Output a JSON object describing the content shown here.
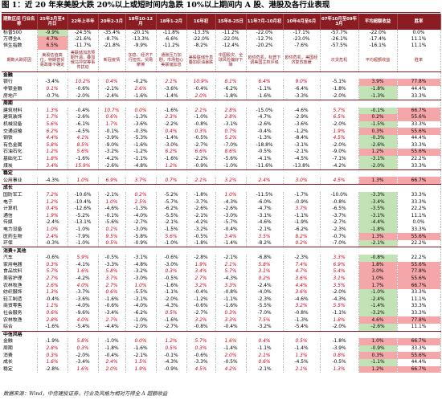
{
  "title": "图 1：近 20 年来美股大跌 20%以上或短时间内急跌 10%以上期间内 A 股、港股及各行业表现",
  "source": "数据来源：Wind，中信建投证券，行业及风格为相对万得全 A 超额收益",
  "header": [
    "期数区间 行业名称",
    "25年3月至4月日",
    "22年上半年",
    "20年2-3月",
    "18年10-12月",
    "18年1-2月",
    "16年初",
    "15年8-25日",
    "11年7月-10月初",
    "10年4月至6月",
    "07年10月至09年3月",
    "平均超额收益",
    "胜率"
  ],
  "index_rows": [
    {
      "name": "标普500",
      "vals": [
        "-9.9%",
        "-24.5%",
        "-35.4%",
        "-20.1%",
        "-11.8%",
        "-13.3%",
        "-11.2%",
        "-22.0%",
        "-17.1%",
        "-57.7%",
        "-22.0%",
        "0.0%"
      ]
    },
    {
      "name": "万得全A",
      "vals": [
        "4.7%",
        "-21.6%",
        "-8.7%",
        "-13.3%",
        "-6.6%",
        "-22.0%",
        "-22.0%",
        "-12.7%",
        "-23.0%",
        "-26.1%",
        "-17.4%",
        "11.1%"
      ]
    },
    {
      "name": "恒生指数",
      "vals": [
        "6.5%",
        "-11.7%",
        "-21.8%",
        "-9.9%",
        "-11.2%",
        "-8.2%",
        "-12.4%",
        "-20.2%",
        "-7.6%",
        "-57.5%",
        "-16.1%",
        "11.1%"
      ]
    }
  ],
  "desc_row": [
    "期数大跌原因",
    "美股估值高位，特朗普贸易政策不确定",
    "美联储加息预期升温，叠加俄乌冲突等事件扰动",
    "新冠疫情",
    "加息、经济下行担忧，贸易摩擦",
    "通胀压力加剧，市场担心美联储加息",
    "美股联储升息叠加原油暴跌",
    "中国股灾、全球风险偏好下降",
    "欧债危机，标普下调美国主权评级",
    "欧债危机，美国经济复苏放缓",
    "次贷危机",
    "平均超额收益",
    "胜率"
  ],
  "sections": [
    {
      "name": "金融",
      "rows": [
        {
          "name": "银行",
          "vals": [
            "-3.4%",
            "10.2%",
            "0.4%",
            "-0.2%",
            "2.1%",
            "10.9%",
            "8.1%",
            "6.4%",
            "9.0%",
            "-5.1%",
            "3.9%",
            "77.8%"
          ]
        },
        {
          "name": "非银金融",
          "vals": [
            "0.1%",
            "-0.6%",
            "-2.1%",
            "2.6%",
            "-3.6%",
            "-0.4%",
            "-6.2%",
            "-1.1%",
            "-6.4%",
            "-1.8%",
            "-1.8%",
            "44.4%"
          ]
        },
        {
          "name": "房地产",
          "vals": [
            "-0.7%",
            "-2.0%",
            "-2.4%",
            "-1.6%",
            "-1.4%",
            "2.0%",
            "-1.8%",
            "-1.6%",
            "-3.3%",
            "-2.0%",
            "-1.3%",
            "33.3%"
          ]
        }
      ]
    },
    {
      "name": "周期",
      "rows": [
        {
          "name": "建筑材料",
          "vals": [
            "1.3%",
            "-0.4%",
            "10.7%",
            "0.0%",
            "-1.6%",
            "2.1%",
            "2.8%",
            "-15.0%",
            "-4.6%",
            "5.7%",
            "-0.1%",
            "66.7%"
          ]
        },
        {
          "name": "建筑装饰",
          "vals": [
            "1.7%",
            "-2.6%",
            "0.6%",
            "-1.3%",
            "2.3%",
            "-1.0%",
            "2.8%",
            "-4.7%",
            "-2.9%",
            "6.5%",
            "0.2%",
            "55.6%"
          ]
        },
        {
          "name": "机械设备",
          "vals": [
            "5.6%",
            "-6.1%",
            "1.7%",
            "-3.6%",
            "-2.2%",
            "-0.8%",
            "-3.1%",
            "-2.6%",
            "-3.6%",
            "-2.0%",
            "-1.5%",
            "33.3%"
          ]
        },
        {
          "name": "交通运输",
          "vals": [
            "6.2%",
            "-4.5%",
            "-0.1%",
            "-0.3%",
            "0.4%",
            "0.3%",
            "0.7%",
            "-0.4%",
            "-1.2%",
            "1.9%",
            "0.3%",
            "55.6%"
          ]
        },
        {
          "name": "钢铁",
          "vals": [
            "4.4%",
            "4.1%",
            "-3.9%",
            "-5.3%",
            "-1.4%",
            "-0.5%",
            "5.2%",
            "-1.3%",
            "-8.4%",
            "4.5%",
            "-0.3%",
            "44.4%"
          ]
        },
        {
          "name": "有色金属",
          "vals": [
            "5.8%",
            "8.5%",
            "-9.0%",
            "-1.6%",
            "-3.0%",
            "-2.7%",
            "-7.0%",
            "-18.8%",
            "-3.1%",
            "-2.0%",
            "-2.6%",
            "33.3%"
          ]
        },
        {
          "name": "石油石化",
          "vals": [
            "1.2%",
            "5.6%",
            "-3.2%",
            "-1.2%",
            "6.2%",
            "6.6%",
            "8.6%",
            "-0.5%",
            "-2.1%",
            "-9.0%",
            "1.2%",
            "55.6%"
          ]
        },
        {
          "name": "基础化工",
          "vals": [
            "1.8%",
            "-1.6%",
            "-4.2%",
            "-1.1%",
            "-1.6%",
            "-2.2%",
            "-5.6%",
            "-4.1%",
            "-4.5%",
            "-7.1%",
            "-3.1%",
            "22.2%"
          ]
        },
        {
          "name": "煤炭",
          "vals": [
            "3.4%",
            "15.9%",
            "-2.6%",
            "-4.8%",
            "1.2%",
            "-0.9%",
            "-1.0%",
            "-11.6%",
            "-13.8%",
            "-4.2%",
            "-2.0%",
            "33.3%"
          ]
        }
      ]
    },
    {
      "name": "稳定",
      "rows": [
        {
          "name": "公用事业",
          "vals": [
            "-4.3%",
            "1.0%",
            "6.9%",
            "3.7%",
            "0.7%",
            "2.1%",
            "3.2%",
            "2.4%",
            "3.0%",
            "4.5%",
            "1.3%",
            "66.7%"
          ]
        }
      ]
    },
    {
      "name": "成长",
      "rows": [
        {
          "name": "国防军工",
          "vals": [
            "7.2%",
            "-10.6%",
            "-2.1%",
            "0.2%",
            "-5.2%",
            "-1.8%",
            "1.0%",
            "-11.5%",
            "-1.7%",
            "-10.0%",
            "-3.3%",
            "33.3%"
          ]
        },
        {
          "name": "电子",
          "vals": [
            "1.2%",
            "-10.4%",
            "1.0%",
            "2.5%",
            "-5.7%",
            "-3.7%",
            "-4.3%",
            "-6.0%",
            "-0.9%",
            "-0.8%",
            "-3.4%",
            "33.3%"
          ]
        },
        {
          "name": "计算机",
          "vals": [
            "0.4%",
            "-12.6%",
            "-4.6%",
            "-1.3%",
            "-6.2%",
            "-2.6%",
            "-2.6%",
            "-4.7%",
            "3.7%",
            "-6.5%",
            "-3.5%",
            "22.2%"
          ]
        },
        {
          "name": "通信",
          "vals": [
            "1.9%",
            "-5.2%",
            "-0.1%",
            "-4.0%",
            "-5.5%",
            "-2.1%",
            "-3.0%",
            "-3.1%",
            "-1.1%",
            "-3.7%",
            "-3.1%",
            "11.1%"
          ]
        },
        {
          "name": "传媒",
          "vals": [
            "-2.4%",
            "-13.1%",
            "-5.6%",
            "-2.7%",
            "-2.1%",
            "-4.2%",
            "-5.7%",
            "-4.6%",
            "-1.9%",
            "-2.7%",
            "-4.4%",
            "0.0%"
          ]
        },
        {
          "name": "电力设备",
          "vals": [
            "1.0%",
            "-1.0%",
            "0.1%",
            "-3.0%",
            "-1.5%",
            "-3.2%",
            "-0.4%",
            "-2.1%",
            "-6.2%",
            "-2.3%",
            "-1.8%",
            "33.3%"
          ]
        },
        {
          "name": "医药生物",
          "vals": [
            "2.4%",
            "-7.9%",
            "9.5%",
            "-5.8%",
            "5.6%",
            "-0.5%",
            "3.4%",
            "3.5%",
            "8.2%",
            "-0.7%",
            "1.3%",
            "55.6%"
          ]
        },
        {
          "name": "环保",
          "vals": [
            "-0.3%",
            "-1.0%",
            "0.5%",
            "-0.9%",
            "-1.0%",
            "-1.8%",
            "-1.4%",
            "-8.2%",
            "0.2%",
            "-7.0%",
            "-2.1%",
            "22.2%"
          ]
        }
      ]
    },
    {
      "name": "消费+其他",
      "rows": [
        {
          "name": "汽车",
          "vals": [
            "-0.6%",
            "5.9%",
            "-0.5%",
            "-3.1%",
            "-0.6%",
            "-2.8%",
            "-2.1%",
            "-6.8%",
            "-2.3%",
            "3.3%",
            "-0.8%",
            "22.2%"
          ]
        },
        {
          "name": "家用电器",
          "vals": [
            "0.3%",
            "-4.1%",
            "-3.3%",
            "-4.8%",
            "-3.0%",
            "1.9%",
            "2.1%",
            "5.8%",
            "7.4%",
            "6.9%",
            "1.8%",
            "55.6%"
          ]
        },
        {
          "name": "食品饮料",
          "vals": [
            "5.7%",
            "1.6%",
            "5.8%",
            "-3.2%",
            "0.3%",
            "3.4%",
            "5.7%",
            "3.1%",
            "4.7%",
            "5.4%",
            "3.0%",
            "77.8%"
          ]
        },
        {
          "name": "美容护理",
          "vals": [
            "2.7%",
            "-4.2%",
            "3.7%",
            "-3.0%",
            "-0.5%",
            "2.7%",
            "-4.3%",
            "0.2%",
            "3.6%",
            "3.1%",
            "1.0%",
            "55.6%"
          ]
        },
        {
          "name": "农林牧渔",
          "vals": [
            "2.6%",
            "4.0%",
            "2.7%",
            "1.0%",
            "-1.6%",
            "3.2%",
            "3.3%",
            "-2.4%",
            "4.4%",
            "3.5%",
            "1.7%",
            "66.7%"
          ]
        },
        {
          "name": "纺织服饰",
          "vals": [
            "1.3%",
            "-3.7%",
            "0.6%",
            "-5.5%",
            "-1.1%",
            "-0.4%",
            "-0.8%",
            "-4.0%",
            "3.6%",
            "-2.0%",
            "-1.0%",
            "33.3%"
          ]
        },
        {
          "name": "轻工制造",
          "vals": [
            "-0.4%",
            "-3.6%",
            "-1.6%",
            "-3.1%",
            "-2.0%",
            "-1.2%",
            "-1.1%",
            "-2.3%",
            "-4.6%",
            "-4.3%",
            "-2.4%",
            "11.1%"
          ]
        },
        {
          "name": "商贸零售",
          "vals": [
            "1.1%",
            "-4.0%",
            "-0.6%",
            "-4.0%",
            "-4.3%",
            "-0.6%",
            "-1.6%",
            "-5.5%",
            "3.2%",
            "5.5%",
            "-1.4%",
            "33.3%"
          ]
        },
        {
          "name": "社会服务",
          "vals": [
            "0.6%",
            "-9.6%",
            "-3.4%",
            "-6.2%",
            "0.5%",
            "-2.7%",
            "0.3%",
            "-7.0%",
            "-0.8%",
            "-1.1%",
            "-3.2%",
            "33.3%"
          ]
        },
        {
          "name": "农林牧渔",
          "vals": [
            "2.8%",
            "4.0%",
            "2.7%",
            "-1.0%",
            "-1.6%",
            "3.2%",
            "3.3%",
            "7.5%",
            "-1.3%",
            "1.8%",
            "4.6%",
            "77.8%"
          ]
        },
        {
          "name": "综合",
          "vals": [
            "-1.6%",
            "-5.4%",
            "-4.4%",
            "-2.0%",
            "-2.7%",
            "-0.8%",
            "-0.4%",
            "-3.2%",
            "-5.4%",
            "-2.0%",
            "-2.6%",
            "11.1%"
          ]
        }
      ]
    },
    {
      "name": "中信风格",
      "rows": [
        {
          "name": "金融",
          "vals": [
            "-1.9%",
            "5.8%",
            "-1.0%",
            "0.0%",
            "1.2%",
            "5.7%",
            "1.6%",
            "0.4%",
            "0.5%",
            "-1.8%",
            "1.0%",
            "66.7%"
          ]
        },
        {
          "name": "周期",
          "vals": [
            "2.8%",
            "0.3%",
            "-1.8%",
            "-1.6%",
            "0.5%",
            "0.3%",
            "-1.4%",
            "-1.1%",
            "-1.4%",
            "-3.9%",
            "-0.9%",
            "33.3%"
          ]
        },
        {
          "name": "消费",
          "vals": [
            "0.3%",
            "-2.0%",
            "-0.4%",
            "-2.1%",
            "-0.1%",
            "-0.6%",
            "2.0%",
            "2.1%",
            "1.3%",
            "0.8%",
            "0.3%",
            "55.6%"
          ]
        },
        {
          "name": "成长",
          "vals": [
            "1.6%",
            "-3.4%",
            "2.4%",
            "1.5%",
            "-4.3%",
            "-3.3%",
            "-0.5%",
            "0.6%",
            "-4.5%",
            "-0.5%",
            "-1.1%",
            "44.4%"
          ]
        },
        {
          "name": "稳定",
          "vals": [
            "-2.8%",
            "1.6%",
            "2.0%",
            "1.9%",
            "-0.9%",
            "4.5%",
            "4.2%",
            "-2.1%",
            "2.1%",
            "1.3%",
            "1.2%",
            "66.7%"
          ]
        }
      ]
    }
  ]
}
